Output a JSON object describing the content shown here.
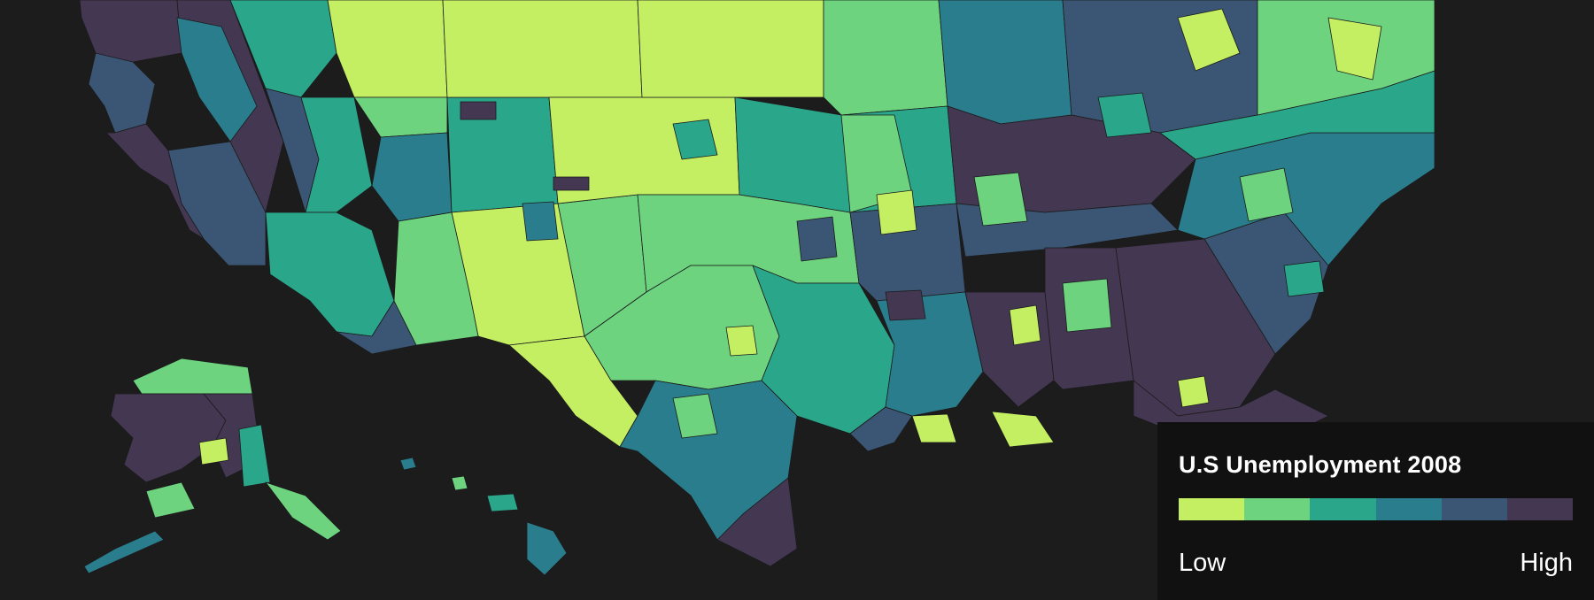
{
  "map": {
    "subject": "U.S. counties choropleth: unemployment rate, 2008",
    "background_color": "#1c1c1c",
    "color_scale": [
      "#c5ef63",
      "#6dd37f",
      "#2aa68b",
      "#2a7d8c",
      "#3b5674",
      "#433752"
    ],
    "regions_shown": [
      "Contiguous United States (southern portion)",
      "Alaska",
      "Hawaii"
    ],
    "pattern": "lowest values concentrated across the Great Plains and Mountain West; highest values across the Southeast, Appalachia, California and Oregon"
  },
  "legend": {
    "title": "U.S Unemployment 2008",
    "low_label": "Low",
    "high_label": "High",
    "colors": [
      "#c5ef63",
      "#6dd37f",
      "#2aa68b",
      "#2a7d8c",
      "#3b5674",
      "#433752"
    ]
  }
}
